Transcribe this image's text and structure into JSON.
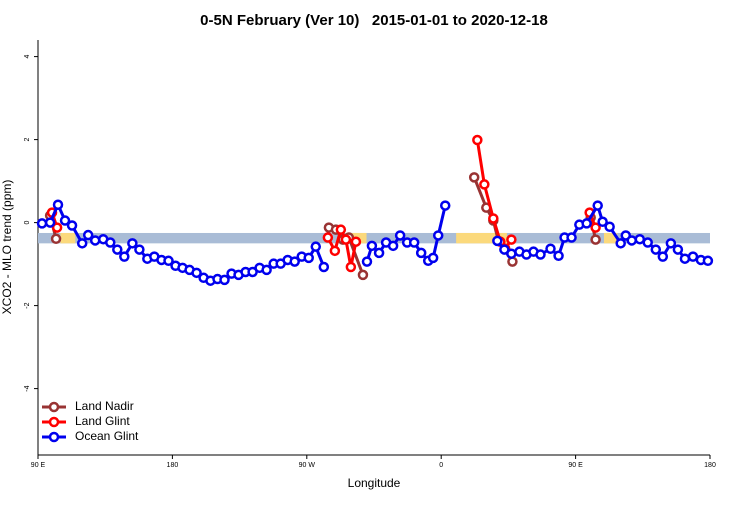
{
  "chart_data": {
    "type": "line",
    "title": "0-5N February (Ver 10)   2015-01-01 to 2020-12-18",
    "x_label": "Longitude",
    "y_label": "XCO2 - MLO trend (ppm)",
    "xlim": [
      90,
      540
    ],
    "xticks": [
      {
        "value": 90,
        "label": "90 E"
      },
      {
        "value": 180,
        "label": "180"
      },
      {
        "value": 270,
        "label": "90 W"
      },
      {
        "value": 360,
        "label": "0"
      },
      {
        "value": 450,
        "label": "90 E"
      },
      {
        "value": 540,
        "label": "180"
      }
    ],
    "ylim": [
      -5.6,
      4.4
    ],
    "yticks": [
      -4,
      -2,
      0,
      2,
      4
    ],
    "legend": "bottom-left",
    "band": {
      "ylim": [
        -0.5,
        -0.25
      ],
      "color": "#a9bcd6",
      "highlights": [
        {
          "xlim": [
            105,
            115
          ],
          "color": "#fbd97c"
        },
        {
          "xlim": [
            296,
            310
          ],
          "color": "#fbd97c"
        },
        {
          "xlim": [
            370,
            404
          ],
          "color": "#fbd97c"
        },
        {
          "xlim": [
            469,
            478
          ],
          "color": "#fbd97c"
        }
      ]
    },
    "series": [
      {
        "name": "Land Nadir",
        "color": "#993333",
        "x": [
          98.1,
          102.1,
          200,
          284.8,
          289.5,
          294.2,
          298.2,
          307.6,
          340,
          382.1,
          390.2,
          394.9,
          398.3,
          407.7,
          430,
          460.1,
          463.4
        ],
        "values": [
          0.17,
          -0.39,
          null,
          -0.12,
          -0.17,
          -0.41,
          -0.36,
          -1.26,
          null,
          1.09,
          0.36,
          0.05,
          -0.44,
          -0.94,
          null,
          0.12,
          -0.41
        ]
      },
      {
        "name": "Land Glint",
        "color": "#ff0000",
        "x": [
          99.4,
          102.8,
          200,
          284.1,
          288.8,
          292.8,
          296.2,
          299.5,
          302.9,
          340,
          384.2,
          388.9,
          394.9,
          399.6,
          402.9,
          407.0,
          430,
          459.4,
          463.4
        ],
        "values": [
          0.24,
          -0.12,
          null,
          -0.36,
          -0.68,
          -0.17,
          -0.41,
          -1.07,
          -0.46,
          null,
          1.99,
          0.92,
          0.1,
          -0.46,
          -0.63,
          -0.41,
          null,
          0.24,
          -0.12
        ]
      },
      {
        "name": "Ocean Glint",
        "color": "#0000ee",
        "x": [
          92.7,
          98.1,
          103.4,
          108.1,
          112.8,
          119.6,
          123.6,
          128.3,
          133.7,
          138.4,
          143.1,
          147.8,
          153.2,
          157.9,
          163.2,
          167.9,
          172.7,
          177.4,
          182.1,
          186.8,
          191.5,
          196.2,
          200.9,
          205.5,
          210.2,
          214.9,
          219.6,
          224.3,
          229.0,
          233.7,
          238.4,
          243.1,
          247.8,
          252.5,
          257.2,
          261.9,
          266.6,
          271.3,
          276.0,
          281.4,
          300,
          310.3,
          313.6,
          318.4,
          323.1,
          327.8,
          332.5,
          337.2,
          341.9,
          346.6,
          351.3,
          354.6,
          358.0,
          362.7,
          380,
          397.6,
          402.3,
          407.0,
          412.4,
          417.1,
          421.8,
          426.5,
          433.2,
          438.6,
          442.6,
          447.3,
          452.5,
          457.4,
          464.8,
          468.1,
          472.8,
          480.2,
          483.6,
          487.6,
          493.0,
          498.3,
          503.7,
          508.4,
          513.8,
          518.5,
          523.2,
          528.6,
          533.9,
          538.6
        ],
        "values": [
          -0.02,
          0,
          0.43,
          0.05,
          -0.07,
          -0.5,
          -0.3,
          -0.43,
          -0.4,
          -0.48,
          -0.65,
          -0.82,
          -0.5,
          -0.65,
          -0.87,
          -0.82,
          -0.9,
          -0.92,
          -1.04,
          -1.09,
          -1.14,
          -1.21,
          -1.33,
          -1.4,
          -1.36,
          -1.38,
          -1.23,
          -1.26,
          -1.19,
          -1.19,
          -1.09,
          -1.14,
          -0.99,
          -0.99,
          -0.9,
          -0.94,
          -0.82,
          -0.85,
          -0.58,
          -1.07,
          null,
          -0.94,
          -0.56,
          -0.73,
          -0.48,
          -0.56,
          -0.31,
          -0.48,
          -0.48,
          -0.73,
          -0.92,
          -0.85,
          -0.31,
          0.41,
          null,
          -0.44,
          -0.65,
          -0.75,
          -0.7,
          -0.77,
          -0.7,
          -0.77,
          -0.63,
          -0.8,
          -0.36,
          -0.36,
          -0.05,
          -0.02,
          0.41,
          0.02,
          -0.1,
          -0.5,
          -0.31,
          -0.43,
          -0.4,
          -0.48,
          -0.65,
          -0.82,
          -0.5,
          -0.65,
          -0.87,
          -0.82,
          -0.9,
          -0.92
        ]
      }
    ]
  }
}
